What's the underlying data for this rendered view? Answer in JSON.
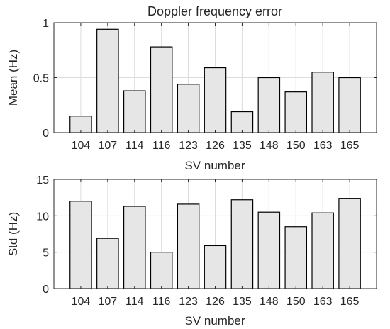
{
  "colors": {
    "bar_fill": "#e6e6e6",
    "bar_edge": "#000000",
    "axis": "#262626",
    "grid": "#dcdcdc"
  },
  "chart_data": [
    {
      "type": "bar",
      "title": "Doppler frequency error",
      "xlabel": "SV number",
      "ylabel": "Mean (Hz)",
      "categories": [
        "104",
        "107",
        "114",
        "116",
        "123",
        "126",
        "135",
        "148",
        "150",
        "163",
        "165"
      ],
      "values": [
        0.15,
        0.94,
        0.38,
        0.78,
        0.44,
        0.59,
        0.19,
        0.5,
        0.37,
        0.55,
        0.5
      ],
      "ylim": [
        0,
        1
      ],
      "yticks": [
        0,
        0.5,
        1
      ],
      "ytick_labels": [
        "0",
        "0.5",
        "1"
      ],
      "grid": true
    },
    {
      "type": "bar",
      "title": "",
      "xlabel": "SV number",
      "ylabel": "Std (Hz)",
      "categories": [
        "104",
        "107",
        "114",
        "116",
        "123",
        "126",
        "135",
        "148",
        "150",
        "163",
        "165"
      ],
      "values": [
        12.0,
        6.9,
        11.3,
        5.0,
        11.6,
        5.9,
        12.2,
        10.5,
        8.5,
        10.4,
        12.4
      ],
      "ylim": [
        0,
        15
      ],
      "yticks": [
        0,
        5,
        10,
        15
      ],
      "ytick_labels": [
        "0",
        "5",
        "10",
        "15"
      ],
      "grid": true
    }
  ]
}
